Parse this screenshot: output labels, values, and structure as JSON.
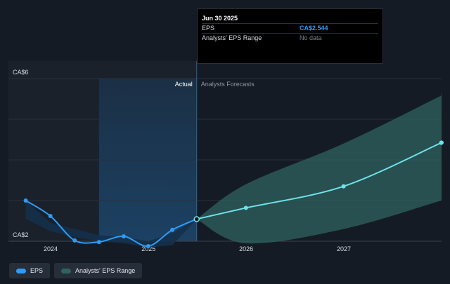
{
  "tooltip": {
    "title": "Jun 30 2025",
    "eps_label": "EPS",
    "eps_value": "CA$2.544",
    "range_label": "Analysts' EPS Range",
    "range_value": "No data"
  },
  "legend": {
    "eps_label": "EPS",
    "range_label": "Analysts' EPS Range"
  },
  "colors": {
    "eps_line": "#2f9bf3",
    "forecast_line": "#6fe3e8",
    "forecast_band": "#2f6360",
    "actual_band": "#1d5b91",
    "background": "#151b24"
  },
  "chart_data": {
    "type": "line",
    "title": "",
    "xlabel": "",
    "ylabel": "",
    "y_tick_labels": [
      "CA$6",
      "CA$2"
    ],
    "ylim": [
      2,
      6
    ],
    "x_tick_labels": [
      "2024",
      "2025",
      "2026",
      "2027"
    ],
    "section_labels": {
      "actual": "Actual",
      "forecast": "Analysts Forecasts"
    },
    "series": [
      {
        "name": "EPS",
        "x": [
          "2023-09-30",
          "2023-12-31",
          "2024-03-31",
          "2024-06-30",
          "2024-09-30",
          "2024-12-31",
          "2025-03-31",
          "2025-06-30"
        ],
        "values": [
          3.0,
          2.62,
          2.02,
          1.98,
          2.12,
          1.88,
          2.28,
          2.544
        ]
      },
      {
        "name": "Analysts Forecasts",
        "x": [
          "2025-06-30",
          "2025-12-31",
          "2026-12-31",
          "2027-12-31"
        ],
        "values": [
          2.544,
          2.82,
          3.35,
          4.42
        ]
      }
    ],
    "forecast_range": {
      "x": [
        "2025-06-30",
        "2025-12-31",
        "2026-12-31",
        "2027-12-31"
      ],
      "low": [
        2.544,
        1.95,
        2.3,
        3.0
      ],
      "high": [
        2.544,
        3.4,
        4.4,
        5.58
      ]
    },
    "grid": true,
    "legend_position": "bottom-left"
  }
}
